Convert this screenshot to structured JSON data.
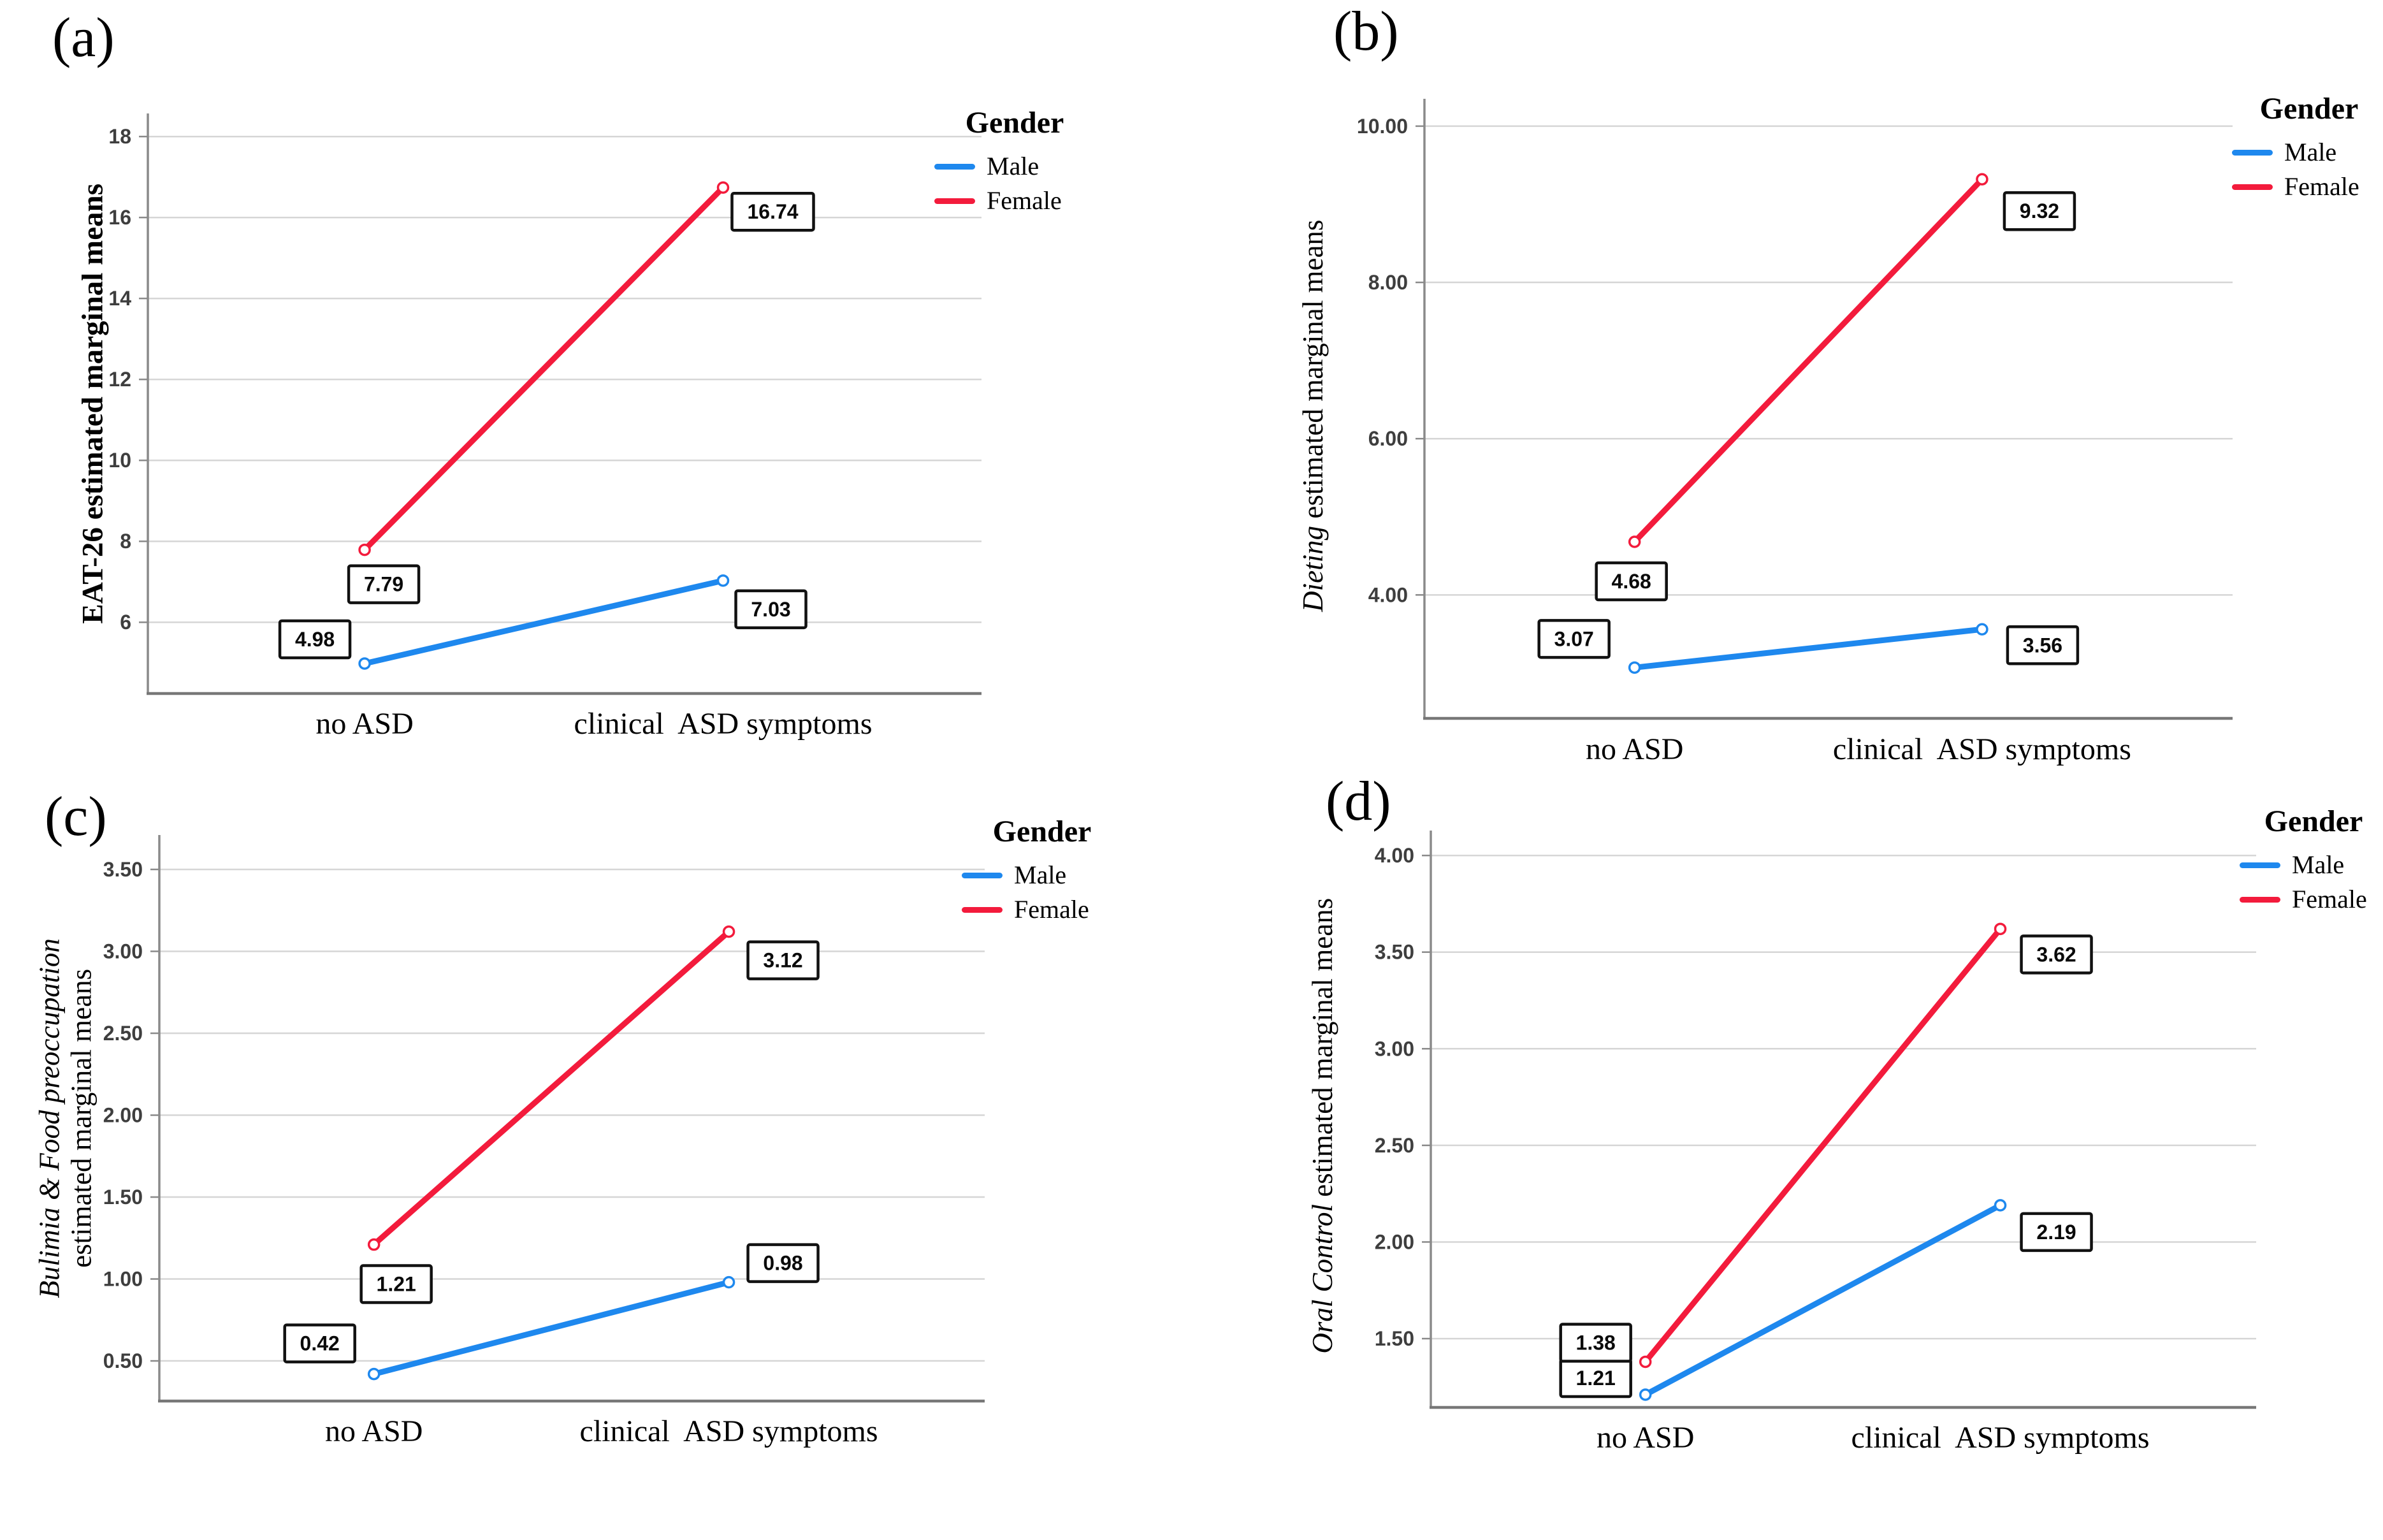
{
  "legend": {
    "title": "Gender",
    "items": [
      {
        "label": "Male",
        "color": "#1e88ee"
      },
      {
        "label": "Female",
        "color": "#f31b3c"
      }
    ]
  },
  "chart_data": [
    {
      "type": "line",
      "panel_label": "(a)",
      "ylabel": "EAT-26 estimated marginal means",
      "ylabel_lines": [
        [
          {
            "text": "EAT-26 estimated marginal means",
            "italic": false
          }
        ]
      ],
      "categories": [
        "no ASD",
        "clinical  ASD symptoms"
      ],
      "ytick_values": [
        18,
        16,
        14,
        12,
        10,
        8,
        6
      ],
      "ytick_labels": [
        "18",
        "16",
        "14",
        "12",
        "10",
        "8",
        "6"
      ],
      "ylim": [
        4.24,
        18.57
      ],
      "grid": "horizontal",
      "legend_position": "top-right",
      "series": [
        {
          "name": "Male",
          "color": "#1e88ee",
          "values": [
            4.98,
            7.03
          ],
          "point_labels": [
            "4.98",
            "7.03"
          ]
        },
        {
          "name": "Female",
          "color": "#f31b3c",
          "values": [
            7.79,
            16.74
          ],
          "point_labels": [
            "7.79",
            "16.74"
          ]
        }
      ]
    },
    {
      "type": "line",
      "panel_label": "(b)",
      "ylabel": "Dieting estimated marginal means",
      "ylabel_lines": [
        [
          {
            "text": "Dieting",
            "italic": true
          },
          {
            "text": " estimated marginal means",
            "italic": false
          }
        ]
      ],
      "categories": [
        "no ASD",
        "clinical  ASD symptoms"
      ],
      "ytick_values": [
        10,
        8,
        6,
        4
      ],
      "ytick_labels": [
        "10.00",
        "8.00",
        "6.00",
        "4.00"
      ],
      "ylim": [
        2.42,
        10.35
      ],
      "grid": "horizontal",
      "legend_position": "top-right",
      "series": [
        {
          "name": "Male",
          "color": "#1e88ee",
          "values": [
            3.07,
            3.56
          ],
          "point_labels": [
            "3.07",
            "3.56"
          ]
        },
        {
          "name": "Female",
          "color": "#f31b3c",
          "values": [
            4.68,
            9.32
          ],
          "point_labels": [
            "4.68",
            "9.32"
          ]
        }
      ]
    },
    {
      "type": "line",
      "panel_label": "(c)",
      "ylabel": "Bulimia & Food preoccupation estimated marginal means",
      "ylabel_lines": [
        [
          {
            "text": "Bulimia & Food preoccupation",
            "italic": true
          }
        ],
        [
          {
            "text": "estimated marginal means",
            "italic": false
          }
        ]
      ],
      "categories": [
        "no ASD",
        "clinical  ASD symptoms"
      ],
      "ytick_values": [
        3.5,
        3.0,
        2.5,
        2.0,
        1.5,
        1.0,
        0.5
      ],
      "ytick_labels": [
        "3.50",
        "3.00",
        "2.50",
        "2.00",
        "1.50",
        "1.00",
        "0.50"
      ],
      "ylim": [
        0.255,
        3.71
      ],
      "grid": "horizontal",
      "legend_position": "top-right",
      "series": [
        {
          "name": "Male",
          "color": "#1e88ee",
          "values": [
            0.42,
            0.98
          ],
          "point_labels": [
            "0.42",
            "0.98"
          ]
        },
        {
          "name": "Female",
          "color": "#f31b3c",
          "values": [
            1.21,
            3.12
          ],
          "point_labels": [
            "1.21",
            "3.12"
          ]
        }
      ]
    },
    {
      "type": "line",
      "panel_label": "(d)",
      "ylabel": "Oral Control estimated marginal means",
      "ylabel_lines": [
        [
          {
            "text": "Oral Control",
            "italic": true
          },
          {
            "text": " estimated marginal means",
            "italic": false
          }
        ]
      ],
      "categories": [
        "no ASD",
        "clinical  ASD symptoms"
      ],
      "ytick_values": [
        4.0,
        3.5,
        3.0,
        2.5,
        2.0,
        1.5
      ],
      "ytick_labels": [
        "4.00",
        "3.50",
        "3.00",
        "2.50",
        "2.00",
        "1.50"
      ],
      "ylim": [
        1.144,
        4.129
      ],
      "grid": "horizontal",
      "legend_position": "top-right",
      "series": [
        {
          "name": "Male",
          "color": "#1e88ee",
          "values": [
            1.21,
            2.19
          ],
          "point_labels": [
            "1.21",
            "2.19"
          ]
        },
        {
          "name": "Female",
          "color": "#f31b3c",
          "values": [
            1.38,
            3.62
          ],
          "point_labels": [
            "1.38",
            "3.62"
          ]
        }
      ]
    }
  ]
}
